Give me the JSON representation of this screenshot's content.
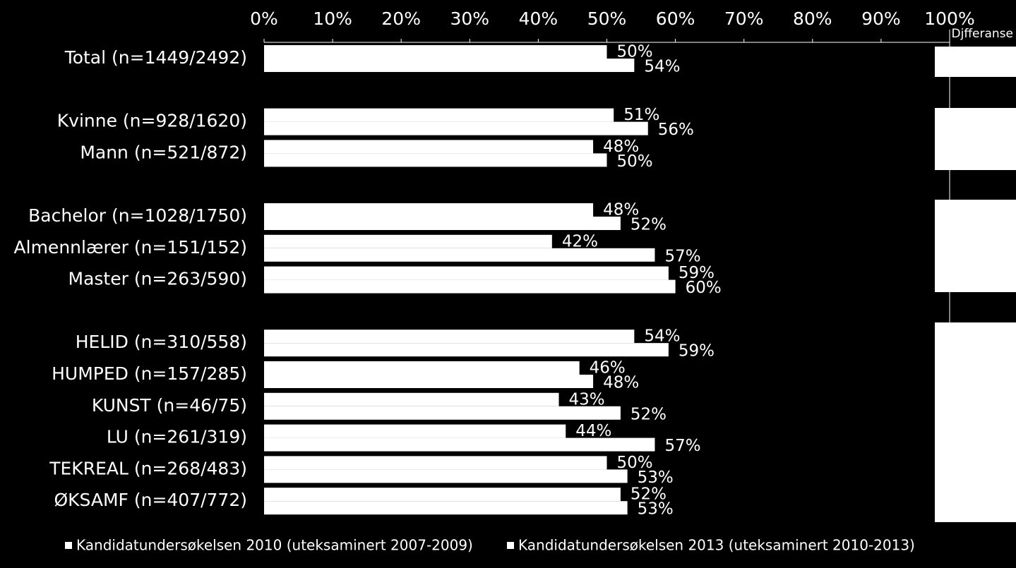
{
  "chart_data": {
    "type": "bar",
    "orientation": "horizontal",
    "categories": [
      "Total (n=1449/2492)",
      null,
      "Kvinne (n=928/1620)",
      "Mann (n=521/872)",
      null,
      "Bachelor (n=1028/1750)",
      "Almennlærer (n=151/152)",
      "Master (n=263/590)",
      null,
      "HELID (n=310/558)",
      "HUMPED (n=157/285)",
      "KUNST (n=46/75)",
      "LU (n=261/319)",
      "TEKREAL (n=268/483)",
      "ØKSAMF (n=407/772)"
    ],
    "series": [
      {
        "name": "Kandidatundersøkelsen 2010 (uteksaminert 2007-2009)",
        "color": "#ffffff",
        "values": [
          50,
          null,
          51,
          48,
          null,
          48,
          42,
          59,
          null,
          54,
          46,
          43,
          44,
          50,
          52
        ],
        "value_labels": [
          "50%",
          null,
          "51%",
          "48%",
          null,
          "48%",
          "42%",
          "59%",
          null,
          "54%",
          "46%",
          "43%",
          "44%",
          "50%",
          "52%"
        ]
      },
      {
        "name": "Kandidatundersøkelsen 2013 (uteksaminert 2010-2013)",
        "color": "#ffffff",
        "values": [
          54,
          null,
          56,
          50,
          null,
          52,
          57,
          60,
          null,
          59,
          48,
          52,
          57,
          53,
          53
        ],
        "value_labels": [
          "54%",
          null,
          "56%",
          "50%",
          null,
          "52%",
          "57%",
          "60%",
          null,
          "59%",
          "48%",
          "52%",
          "57%",
          "53%",
          "53%"
        ]
      }
    ],
    "xlim": [
      0,
      100
    ],
    "xticks": [
      {
        "value": 0,
        "label": "0%"
      },
      {
        "value": 10,
        "label": "10%"
      },
      {
        "value": 20,
        "label": "20%"
      },
      {
        "value": 30,
        "label": "30%"
      },
      {
        "value": 40,
        "label": "40%"
      },
      {
        "value": 50,
        "label": "50%"
      },
      {
        "value": 60,
        "label": "60%"
      },
      {
        "value": 70,
        "label": "70%"
      },
      {
        "value": 80,
        "label": "80%"
      },
      {
        "value": 90,
        "label": "90%"
      },
      {
        "value": 100,
        "label": "100%"
      }
    ],
    "grid": false,
    "difference_header": "Djfferanse"
  }
}
